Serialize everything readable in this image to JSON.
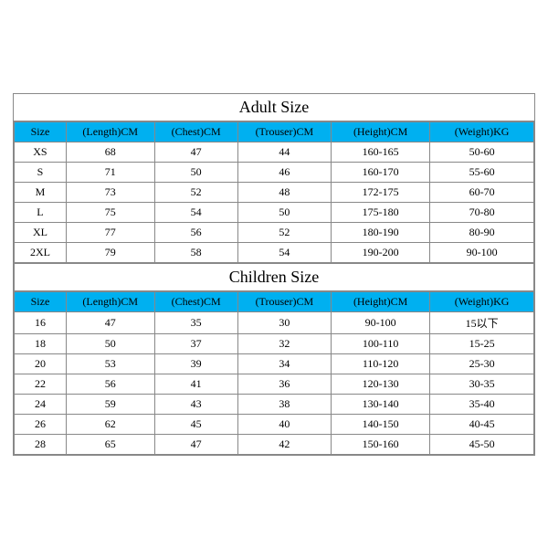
{
  "header_color": "#00b0f0",
  "border_color": "#888888",
  "adult": {
    "title": "Adult Size",
    "columns": [
      "Size",
      "(Length)CM",
      "(Chest)CM",
      "(Trouser)CM",
      "(Height)CM",
      "(Weight)KG"
    ],
    "rows": [
      [
        "XS",
        "68",
        "47",
        "44",
        "160-165",
        "50-60"
      ],
      [
        "S",
        "71",
        "50",
        "46",
        "160-170",
        "55-60"
      ],
      [
        "M",
        "73",
        "52",
        "48",
        "172-175",
        "60-70"
      ],
      [
        "L",
        "75",
        "54",
        "50",
        "175-180",
        "70-80"
      ],
      [
        "XL",
        "77",
        "56",
        "52",
        "180-190",
        "80-90"
      ],
      [
        "2XL",
        "79",
        "58",
        "54",
        "190-200",
        "90-100"
      ]
    ]
  },
  "children": {
    "title": "Children Size",
    "columns": [
      "Size",
      "(Length)CM",
      "(Chest)CM",
      "(Trouser)CM",
      "(Height)CM",
      "(Weight)KG"
    ],
    "rows": [
      [
        "16",
        "47",
        "35",
        "30",
        "90-100",
        "15以下"
      ],
      [
        "18",
        "50",
        "37",
        "32",
        "100-110",
        "15-25"
      ],
      [
        "20",
        "53",
        "39",
        "34",
        "110-120",
        "25-30"
      ],
      [
        "22",
        "56",
        "41",
        "36",
        "120-130",
        "30-35"
      ],
      [
        "24",
        "59",
        "43",
        "38",
        "130-140",
        "35-40"
      ],
      [
        "26",
        "62",
        "45",
        "40",
        "140-150",
        "40-45"
      ],
      [
        "28",
        "65",
        "47",
        "42",
        "150-160",
        "45-50"
      ]
    ]
  }
}
